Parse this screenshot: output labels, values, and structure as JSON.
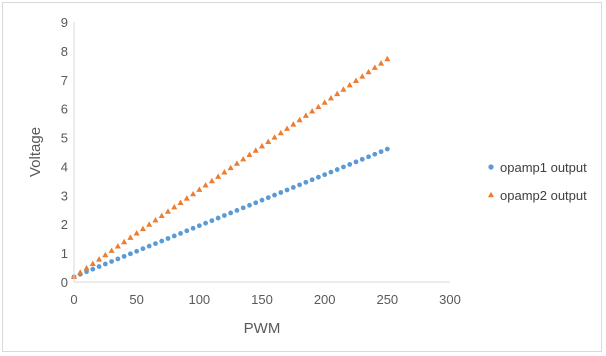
{
  "chart_data": {
    "type": "scatter",
    "title": "",
    "xlabel": "PWM",
    "ylabel": "Voltage",
    "xlim": [
      0,
      300
    ],
    "ylim": [
      0,
      9
    ],
    "xticks": [
      "0",
      "50",
      "100",
      "150",
      "200",
      "250",
      "300"
    ],
    "yticks": [
      "0",
      "1",
      "2",
      "3",
      "4",
      "5",
      "6",
      "7",
      "8",
      "9"
    ],
    "grid": false,
    "legend": "right",
    "series": [
      {
        "name": "opamp1 output",
        "color": "#5B9BD5",
        "marker": "circle",
        "x_range": {
          "start": 0,
          "end": 250,
          "step": 5
        },
        "y_start": 0.18,
        "y_end": 4.6
      },
      {
        "name": "opamp2 output",
        "color": "#ED7D31",
        "marker": "triangle",
        "x_range": {
          "start": 0,
          "end": 250,
          "step": 5
        },
        "y_start": 0.18,
        "y_end": 7.72
      }
    ]
  }
}
